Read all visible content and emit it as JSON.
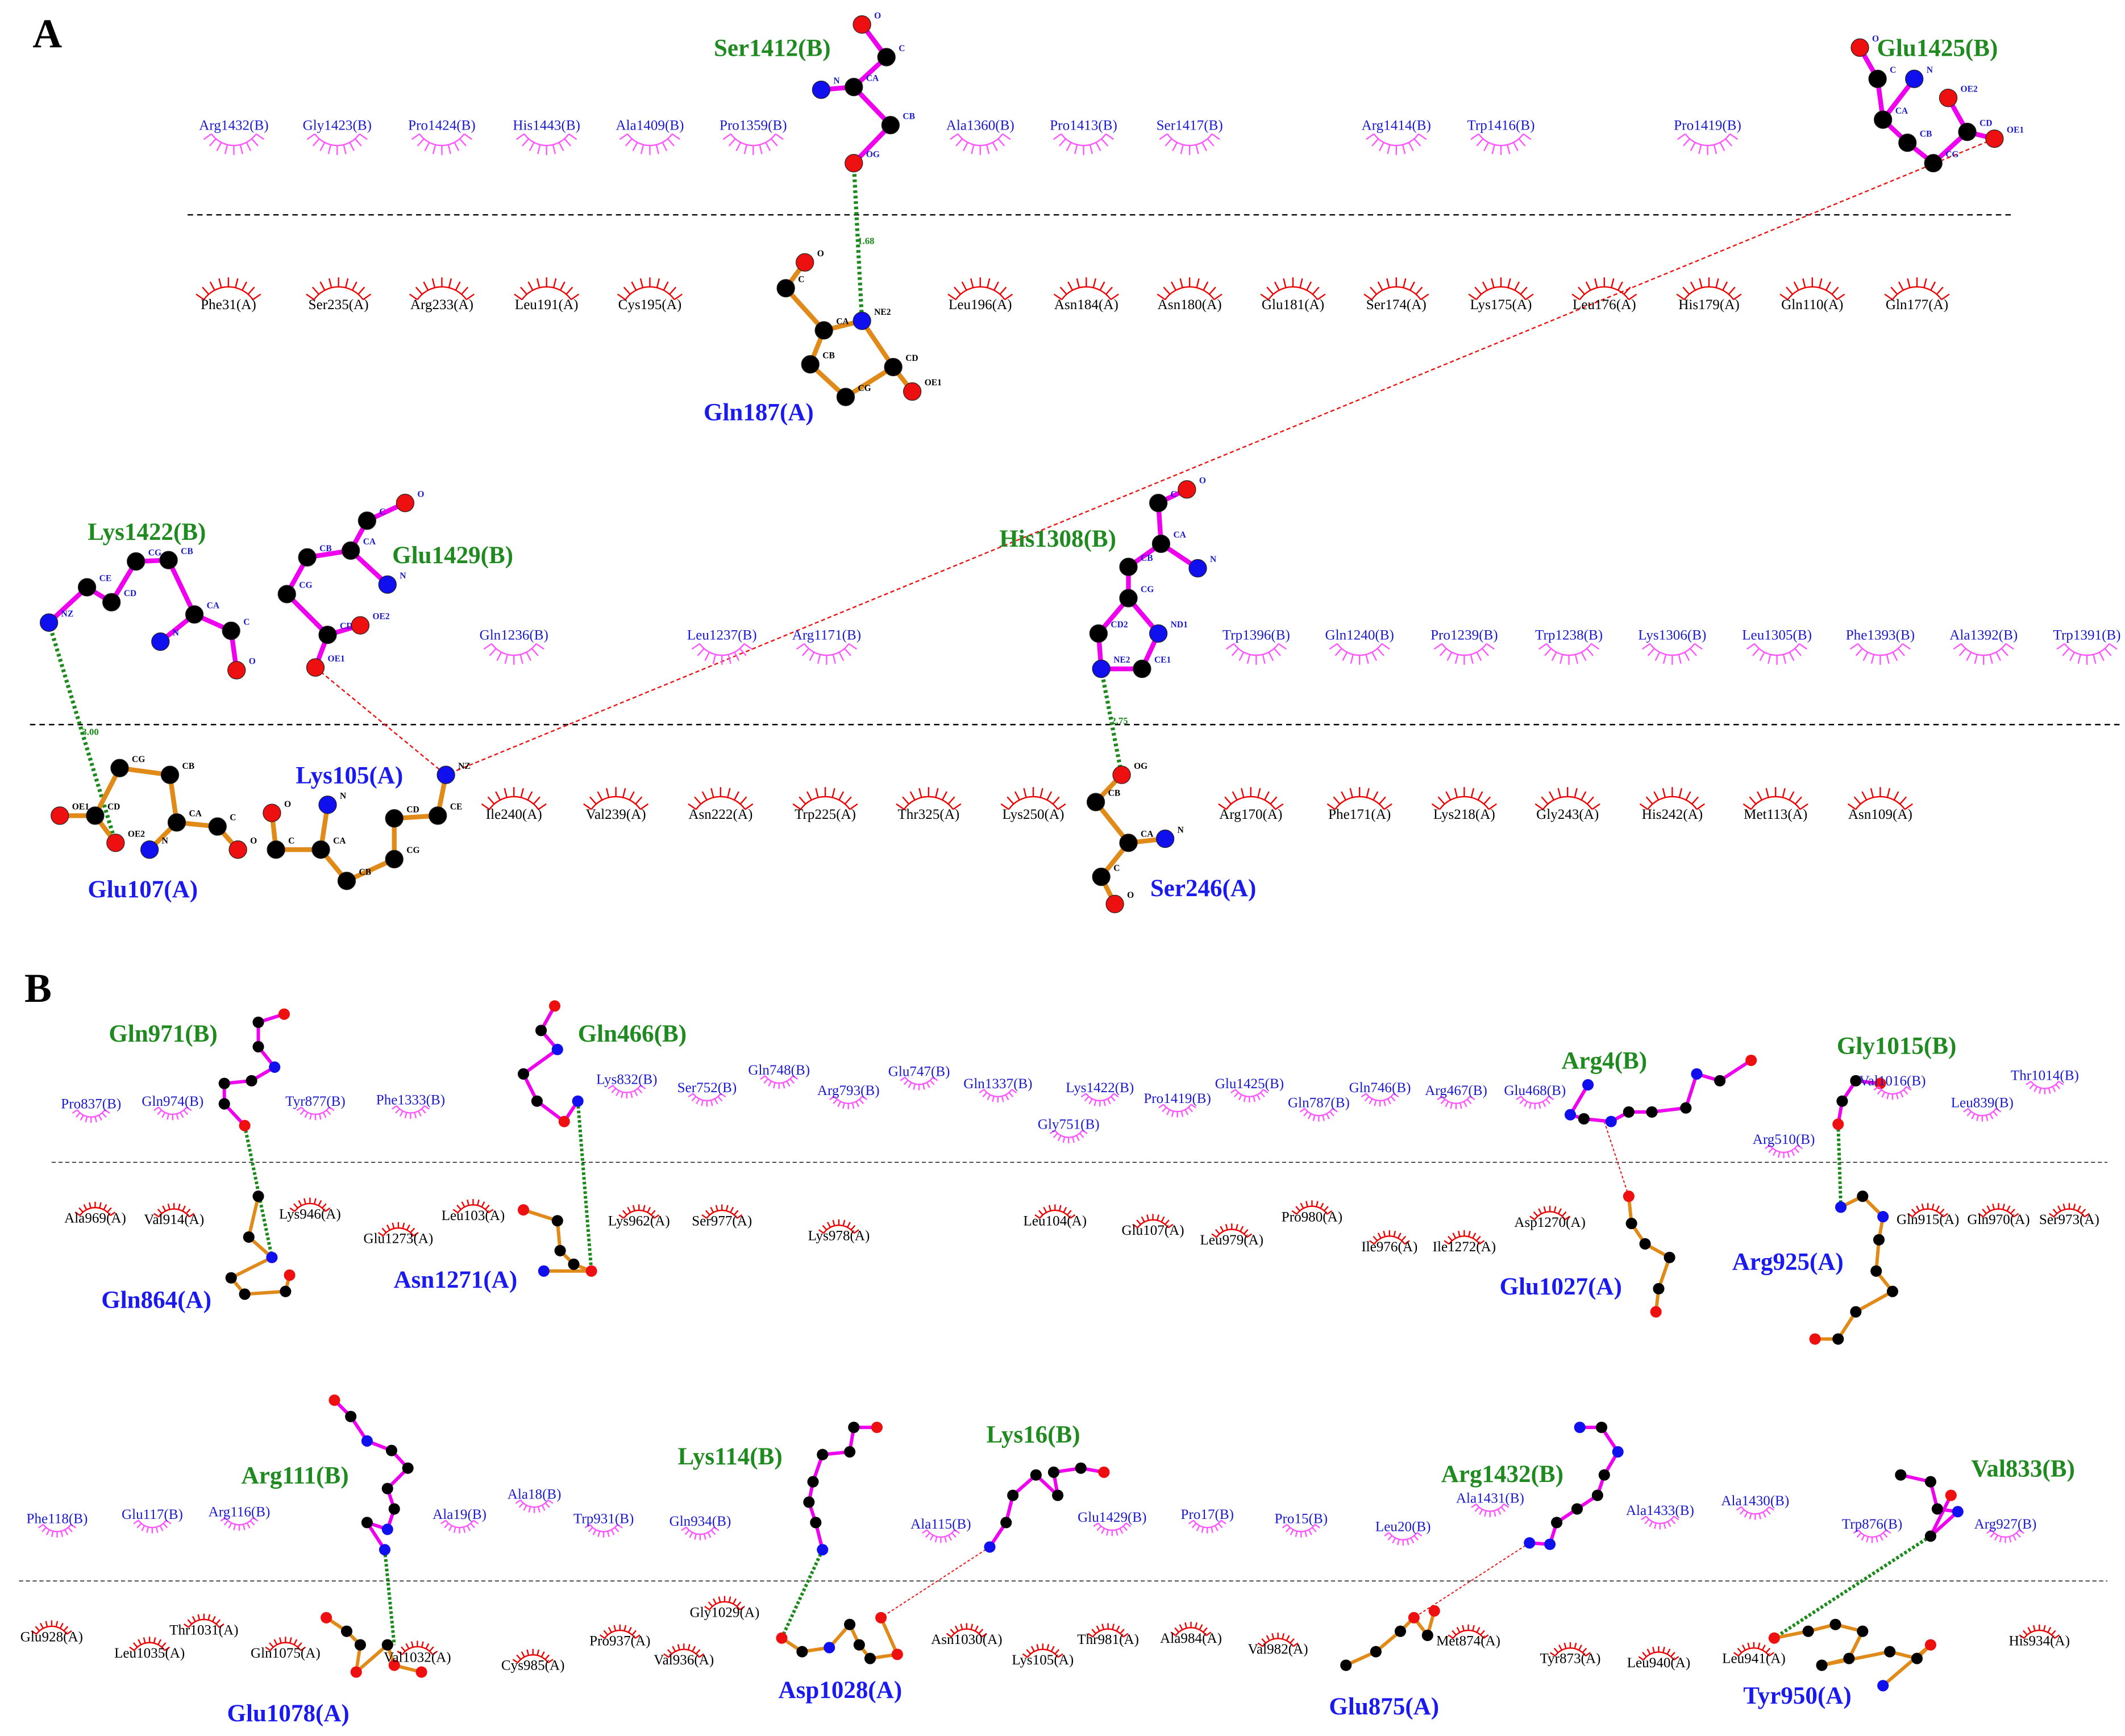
{
  "panels": [
    {
      "label": "A",
      "sections": [
        {
          "chain_b_residues": [
            "Arg1432(B)",
            "Gly1423(B)",
            "Pro1424(B)",
            "His1443(B)",
            "Ala1409(B)",
            "Pro1359(B)",
            "Ala1360(B)",
            "Pro1413(B)",
            "Ser1417(B)",
            "Arg1414(B)",
            "Trp1416(B)",
            "Pro1419(B)"
          ],
          "chain_a_residues": [
            "Phe31(A)",
            "Ser235(A)",
            "Arg233(A)",
            "Leu191(A)",
            "Cys195(A)",
            "Leu196(A)",
            "Asn184(A)",
            "Asn180(A)",
            "Glu181(A)",
            "Ser174(A)",
            "Lys175(A)",
            "Leu176(A)",
            "His179(A)",
            "Gln110(A)",
            "Gln177(A)"
          ]
        },
        {
          "chain_b_residues": [
            "Gln1236(B)",
            "Leu1237(B)",
            "Arg1171(B)",
            "Trp1396(B)",
            "Gln1240(B)",
            "Pro1239(B)",
            "Trp1238(B)",
            "Lys1306(B)",
            "Leu1305(B)",
            "Phe1393(B)",
            "Ala1392(B)",
            "Trp1391(B)"
          ],
          "chain_a_residues": [
            "Ile240(A)",
            "Val239(A)",
            "Asn222(A)",
            "Trp225(A)",
            "Thr325(A)",
            "Lys250(A)",
            "Arg170(A)",
            "Phe171(A)",
            "Lys218(A)",
            "Gly243(A)",
            "His242(A)",
            "Met113(A)",
            "Asn109(A)"
          ]
        }
      ],
      "molecules": [
        {
          "name": "Ser1412(B)",
          "atoms": [
            "O",
            "C",
            "CA",
            "N",
            "CB",
            "OG"
          ]
        },
        {
          "name": "Gln187(A)",
          "atoms": [
            "O",
            "C",
            "CA",
            "CB",
            "CG",
            "CD",
            "OE1",
            "NE2"
          ]
        },
        {
          "name": "Glu1425(B)",
          "atoms": [
            "O",
            "C",
            "N",
            "CA",
            "CB",
            "CG",
            "CD",
            "OE2",
            "OE1"
          ]
        },
        {
          "name": "Lys1422(B)",
          "atoms": [
            "NZ",
            "CE",
            "CD",
            "CG",
            "CB",
            "CA",
            "N",
            "C",
            "O"
          ]
        },
        {
          "name": "Glu1429(B)",
          "atoms": [
            "O",
            "C",
            "CA",
            "N",
            "CB",
            "CG",
            "CD",
            "OE2",
            "OE1"
          ]
        },
        {
          "name": "His1308(B)",
          "atoms": [
            "O",
            "C",
            "CA",
            "N",
            "CB",
            "CG",
            "CD2",
            "ND1",
            "CE1",
            "NE2"
          ]
        },
        {
          "name": "Glu107(A)",
          "atoms": [
            "OE1",
            "CD",
            "OE2",
            "CG",
            "CB",
            "CA",
            "N",
            "C",
            "O"
          ]
        },
        {
          "name": "Lys105(A)",
          "atoms": [
            "O",
            "C",
            "CA",
            "N",
            "CB",
            "CG",
            "CD",
            "CE",
            "NZ"
          ]
        },
        {
          "name": "Ser246(A)",
          "atoms": [
            "OG",
            "CB",
            "CA",
            "N",
            "C",
            "O"
          ]
        }
      ],
      "hbond_distances": [
        "1.68",
        "3.00",
        "2.75"
      ]
    },
    {
      "label": "B",
      "sections": [
        {
          "chain_b_residues": [
            "Pro837(B)",
            "Gln974(B)",
            "Tyr877(B)",
            "Phe1333(B)",
            "Lys832(B)",
            "Ser752(B)",
            "Gln748(B)",
            "Arg793(B)",
            "Glu747(B)",
            "Gln1337(B)",
            "Lys1422(B)",
            "Gly751(B)",
            "Pro1419(B)",
            "Glu1425(B)",
            "Gln787(B)",
            "Gln746(B)",
            "Arg467(B)",
            "Glu468(B)",
            "Arg510(B)",
            "Val1016(B)",
            "Leu839(B)",
            "Thr1014(B)"
          ],
          "chain_a_residues": [
            "Ala969(A)",
            "Val914(A)",
            "Lys946(A)",
            "Glu1273(A)",
            "Leu103(A)",
            "Lys962(A)",
            "Ser977(A)",
            "Lys978(A)",
            "Leu104(A)",
            "Glu107(A)",
            "Leu979(A)",
            "Pro980(A)",
            "Ile976(A)",
            "Ile1272(A)",
            "Asp1270(A)",
            "Gln915(A)",
            "Gln970(A)",
            "Ser973(A)"
          ]
        },
        {
          "chain_b_residues": [
            "Phe118(B)",
            "Glu117(B)",
            "Arg116(B)",
            "Ala19(B)",
            "Ala18(B)",
            "Trp931(B)",
            "Gln934(B)",
            "Ala115(B)",
            "Glu1429(B)",
            "Pro17(B)",
            "Pro15(B)",
            "Leu20(B)",
            "Ala1431(B)",
            "Ala1433(B)",
            "Ala1430(B)",
            "Trp876(B)",
            "Arg927(B)"
          ],
          "chain_a_residues": [
            "Glu928(A)",
            "Leu1035(A)",
            "Thr1031(A)",
            "Gln1075(A)",
            "Val1032(A)",
            "Cys985(A)",
            "Pro937(A)",
            "Val936(A)",
            "Gly1029(A)",
            "Asn1030(A)",
            "Lys105(A)",
            "Thr981(A)",
            "Ala984(A)",
            "Val982(A)",
            "Met874(A)",
            "Tyr873(A)",
            "Leu940(A)",
            "Leu941(A)",
            "His934(A)"
          ]
        }
      ],
      "molecules": [
        {
          "name": "Gln971(B)"
        },
        {
          "name": "Gln864(A)"
        },
        {
          "name": "Gln466(B)"
        },
        {
          "name": "Asn1271(A)"
        },
        {
          "name": "Arg4(B)"
        },
        {
          "name": "Glu1027(A)"
        },
        {
          "name": "Gly1015(B)"
        },
        {
          "name": "Arg925(A)"
        },
        {
          "name": "Arg111(B)"
        },
        {
          "name": "Glu1078(A)"
        },
        {
          "name": "Lys114(B)"
        },
        {
          "name": "Asp1028(A)"
        },
        {
          "name": "Lys16(B)"
        },
        {
          "name": "Arg1432(B)"
        },
        {
          "name": "Glu875(A)"
        },
        {
          "name": "Val833(B)"
        },
        {
          "name": "Tyr950(A)"
        }
      ]
    }
  ]
}
